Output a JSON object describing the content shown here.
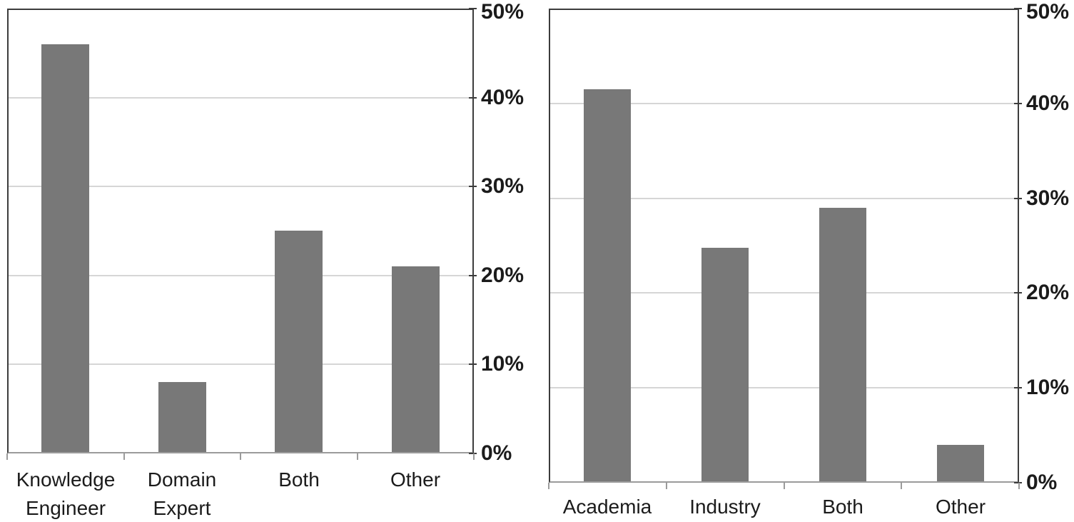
{
  "figure": {
    "background_color": "#ffffff",
    "bar_color": "#787878",
    "gridline_color": "#d6d6d6",
    "plot_border_color": "#3c3c3c",
    "baseline_color": "#9b9b9b",
    "text_color": "#1b1b1b"
  },
  "chart_data": [
    {
      "type": "bar",
      "title": "",
      "xlabel": "",
      "ylabel": "",
      "categories": [
        "Knowledge Engineer",
        "Domain Expert",
        "Both",
        "Other"
      ],
      "category_label_lines": [
        [
          "Knowledge",
          "Engineer"
        ],
        [
          "Domain",
          "Expert"
        ],
        [
          "Both"
        ],
        [
          "Other"
        ]
      ],
      "values": [
        46,
        8,
        25,
        21
      ],
      "unit": "%",
      "ylim": [
        0,
        50
      ],
      "ytick_values": [
        0,
        10,
        20,
        30,
        40,
        50
      ],
      "yticks": [
        "0%",
        "10%",
        "20%",
        "30%",
        "40%",
        "50%"
      ],
      "axis_side": "right",
      "grid": true,
      "legend": "none"
    },
    {
      "type": "bar",
      "title": "",
      "xlabel": "",
      "ylabel": "",
      "categories": [
        "Academia",
        "Industry",
        "Both",
        "Other"
      ],
      "category_label_lines": [
        [
          "Academia"
        ],
        [
          "Industry"
        ],
        [
          "Both"
        ],
        [
          "Other"
        ]
      ],
      "values": [
        41.5,
        24.8,
        29,
        4
      ],
      "unit": "%",
      "ylim": [
        0,
        50
      ],
      "ytick_values": [
        0,
        10,
        20,
        30,
        40,
        50
      ],
      "yticks": [
        "0%",
        "10%",
        "20%",
        "30%",
        "40%",
        "50%"
      ],
      "axis_side": "right",
      "grid": true,
      "legend": "none"
    }
  ]
}
